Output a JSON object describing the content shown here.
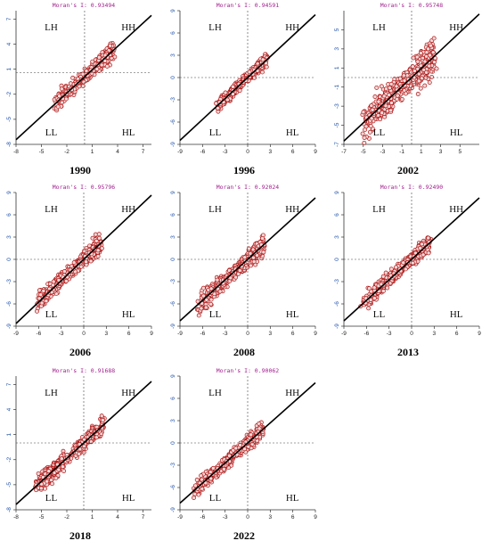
{
  "chart_data": [
    {
      "type": "scatter",
      "year": "1990",
      "moran_label": "Moran's I: 0.93494",
      "quadrants": [
        "LH",
        "HH",
        "LL",
        "HL"
      ],
      "xlim": [
        -8,
        8
      ],
      "ylim": [
        -8,
        8
      ],
      "xticks": [
        -8,
        -5,
        -2,
        1,
        4,
        7
      ],
      "yticks": [
        -8,
        -5,
        -2,
        1,
        4,
        7
      ],
      "x_mean": 0.1,
      "y_mean": 0.6,
      "cloud": {
        "x_min": -3.4,
        "x_max": 3.4,
        "slope": 0.93,
        "spread": 1.0
      }
    },
    {
      "type": "scatter",
      "year": "1996",
      "moran_label": "Moran's I: 0.94591",
      "quadrants": [
        "LH",
        "HH",
        "LL",
        "HL"
      ],
      "xlim": [
        -9,
        9
      ],
      "ylim": [
        -9,
        9
      ],
      "xticks": [
        -9,
        -6,
        -3,
        0,
        3,
        6,
        9
      ],
      "yticks": [
        -9,
        -6,
        -3,
        0,
        3,
        6,
        9
      ],
      "x_mean": 0,
      "y_mean": 0,
      "cloud": {
        "x_min": -4.2,
        "x_max": 2.5,
        "slope": 0.94,
        "spread": 0.9
      }
    },
    {
      "type": "scatter",
      "year": "2002",
      "moran_label": "Moran's I: 0.95748",
      "quadrants": [
        "LH",
        "HH",
        "LL",
        "HL"
      ],
      "xlim": [
        -7,
        7
      ],
      "ylim": [
        -7,
        7
      ],
      "xticks": [
        -7,
        -5,
        -3,
        -1,
        1,
        3,
        5
      ],
      "yticks": [
        -7,
        -5,
        -3,
        -1,
        1,
        3,
        5
      ],
      "x_mean": 0,
      "y_mean": 0,
      "cloud": {
        "x_min": -5.2,
        "x_max": 2.3,
        "slope": 0.95,
        "spread": 2.0
      }
    },
    {
      "type": "scatter",
      "year": "2006",
      "moran_label": "Moran's I: 0.95796",
      "quadrants": [
        "LH",
        "HH",
        "LL",
        "HL"
      ],
      "xlim": [
        -9,
        9
      ],
      "ylim": [
        -9,
        9
      ],
      "xticks": [
        -9,
        -6,
        -3,
        0,
        3,
        6,
        9
      ],
      "yticks": [
        -9,
        -6,
        -3,
        0,
        3,
        6,
        9
      ],
      "x_mean": 0,
      "y_mean": 0,
      "cloud": {
        "x_min": -6.2,
        "x_max": 2.3,
        "slope": 0.96,
        "spread": 1.2
      }
    },
    {
      "type": "scatter",
      "year": "2008",
      "moran_label": "Moran's I: 0.92024",
      "quadrants": [
        "LH",
        "HH",
        "LL",
        "HL"
      ],
      "xlim": [
        -9,
        9
      ],
      "ylim": [
        -9,
        9
      ],
      "xticks": [
        -9,
        -6,
        -3,
        0,
        3,
        6,
        9
      ],
      "yticks": [
        -9,
        -6,
        -3,
        0,
        3,
        6,
        9
      ],
      "x_mean": 0,
      "y_mean": 0,
      "cloud": {
        "x_min": -6.6,
        "x_max": 2.2,
        "slope": 0.92,
        "spread": 1.3
      }
    },
    {
      "type": "scatter",
      "year": "2013",
      "moran_label": "Moran's I: 0.92490",
      "quadrants": [
        "LH",
        "HH",
        "LL",
        "HL"
      ],
      "xlim": [
        -9,
        9
      ],
      "ylim": [
        -9,
        9
      ],
      "xticks": [
        -9,
        -6,
        -3,
        0,
        3,
        6,
        9
      ],
      "yticks": [
        -9,
        -6,
        -3,
        0,
        3,
        6,
        9
      ],
      "x_mean": 0,
      "y_mean": 0,
      "cloud": {
        "x_min": -6.5,
        "x_max": 2.3,
        "slope": 0.92,
        "spread": 1.1
      }
    },
    {
      "type": "scatter",
      "year": "2018",
      "moran_label": "Moran's I: 0.91688",
      "quadrants": [
        "LH",
        "HH",
        "LL",
        "HL"
      ],
      "xlim": [
        -8,
        8
      ],
      "ylim": [
        -8,
        8
      ],
      "xticks": [
        -8,
        -5,
        -2,
        1,
        4,
        7
      ],
      "yticks": [
        -8,
        -5,
        -2,
        1,
        4,
        7
      ],
      "x_mean": 0,
      "y_mean": 0,
      "cloud": {
        "x_min": -5.6,
        "x_max": 2.3,
        "slope": 0.92,
        "spread": 1.1
      }
    },
    {
      "type": "scatter",
      "year": "2022",
      "moran_label": "Moran's I: 0.90062",
      "quadrants": [
        "LH",
        "HH",
        "LL",
        "HL"
      ],
      "xlim": [
        -9,
        9
      ],
      "ylim": [
        -9,
        9
      ],
      "xticks": [
        -9,
        -6,
        -3,
        0,
        3,
        6,
        9
      ],
      "yticks": [
        -9,
        -6,
        -3,
        0,
        3,
        6,
        9
      ],
      "x_mean": 0,
      "y_mean": 0,
      "cloud": {
        "x_min": -7.2,
        "x_max": 2.0,
        "slope": 0.9,
        "spread": 1.1
      }
    }
  ],
  "style": {
    "point_color": "#b01818",
    "point_fill": "#f4d8d8",
    "regression_color": "#000000",
    "moran_color": "#a0208c",
    "ytick_color": "#1d4fa8"
  }
}
